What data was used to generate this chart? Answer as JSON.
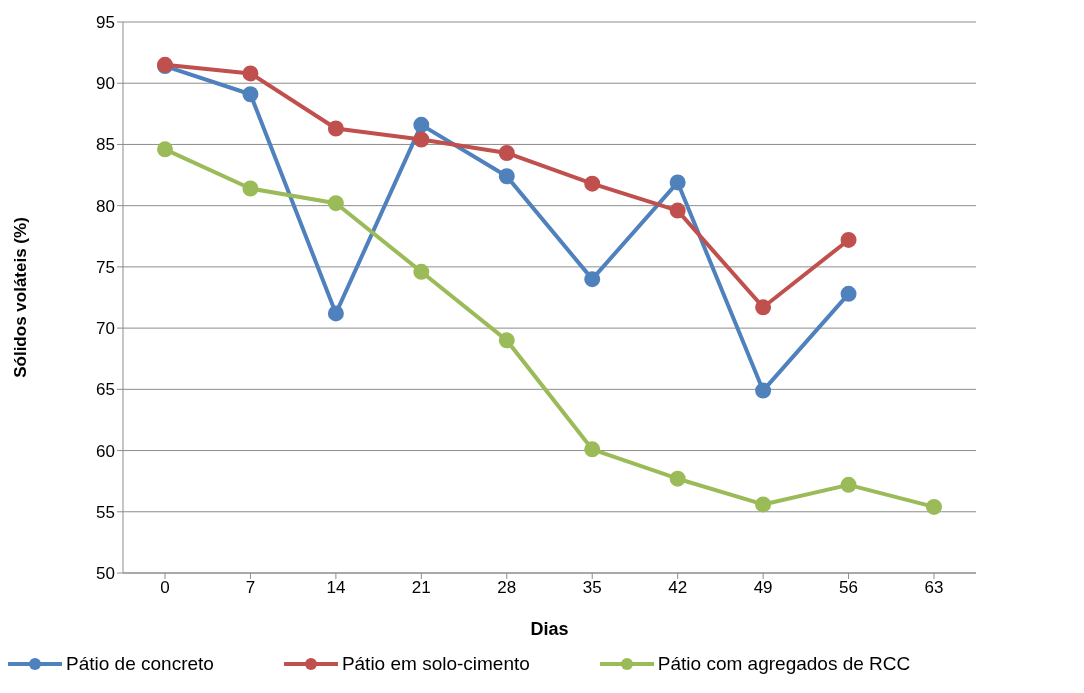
{
  "chart_data": {
    "type": "line",
    "xlabel": "Dias",
    "ylabel": "Sólidos voláteis (%)",
    "categories": [
      "0",
      "7",
      "14",
      "21",
      "28",
      "35",
      "42",
      "49",
      "56",
      "63"
    ],
    "ylim": [
      50,
      95
    ],
    "yticks": [
      50,
      55,
      60,
      65,
      70,
      75,
      80,
      85,
      90,
      95
    ],
    "grid": "y",
    "legend": "bottom",
    "marker": "circle",
    "line_style": "solid",
    "series": [
      {
        "name": "Pátio de concreto",
        "color": "#4f81bd",
        "values": [
          91.4,
          89.1,
          71.2,
          86.6,
          82.4,
          74.0,
          81.9,
          64.9,
          72.8,
          null
        ]
      },
      {
        "name": "Pátio em solo-cimento",
        "color": "#c0504d",
        "values": [
          91.5,
          90.8,
          86.3,
          85.4,
          84.3,
          81.8,
          79.6,
          71.7,
          77.2,
          null
        ]
      },
      {
        "name": "Pátio com agregados de RCC",
        "color": "#9bbb59",
        "values": [
          84.6,
          81.4,
          80.2,
          74.6,
          69.0,
          60.1,
          57.7,
          55.6,
          57.2,
          55.4
        ]
      }
    ]
  }
}
